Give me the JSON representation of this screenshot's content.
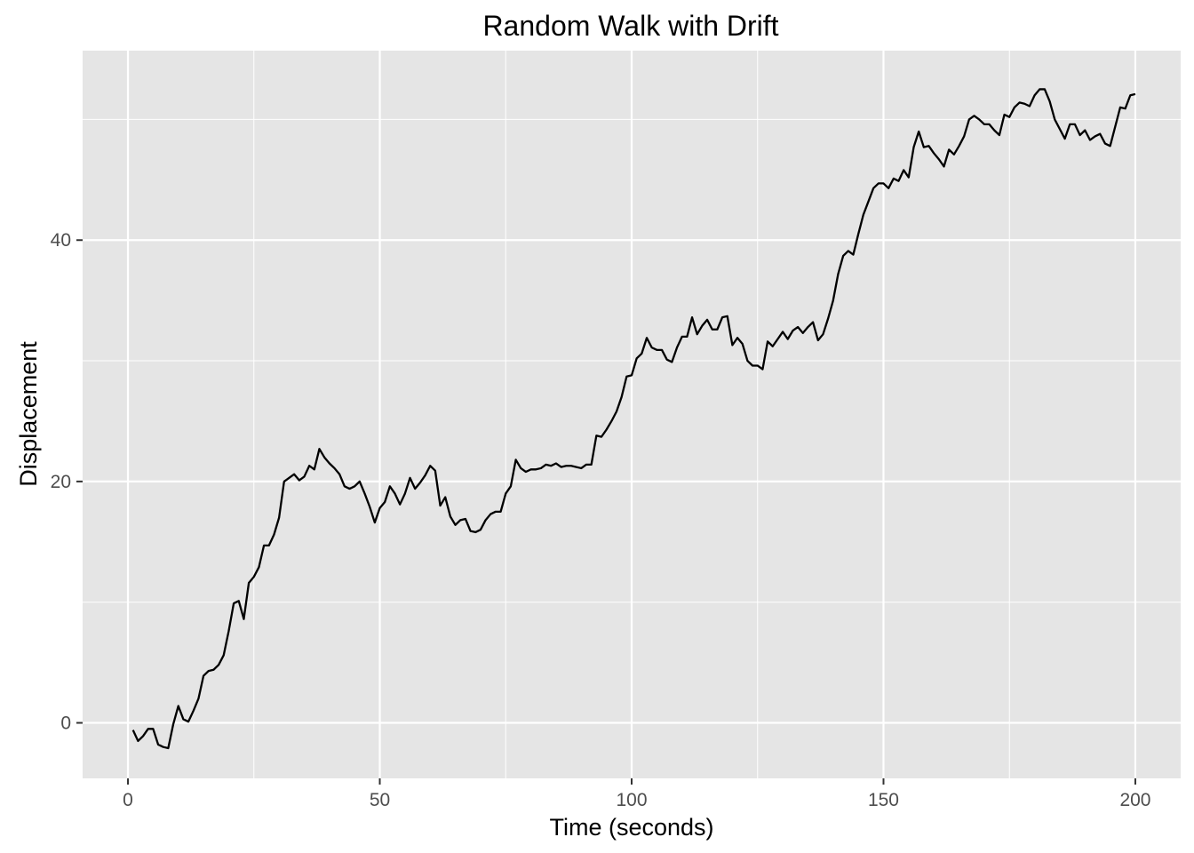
{
  "chart_data": {
    "type": "line",
    "title": "Random Walk with Drift",
    "xlabel": "Time (seconds)",
    "ylabel": "Displacement",
    "xlim": [
      -9,
      209
    ],
    "ylim": [
      -4.6,
      55.7
    ],
    "x_ticks": [
      0,
      50,
      100,
      150,
      200
    ],
    "x_tick_labels": [
      "0",
      "50",
      "100",
      "150",
      "200"
    ],
    "y_ticks": [
      0,
      20,
      40
    ],
    "y_tick_labels": [
      "0",
      "20",
      "40"
    ],
    "x_minor_ticks": [
      25,
      75,
      125,
      175
    ],
    "y_minor_ticks": [
      10,
      30,
      50
    ],
    "grid": true,
    "legend": false,
    "colors": {
      "panel": "#e5e5e5",
      "grid": "#ffffff",
      "line": "#000000",
      "tick_label": "#4d4d4d"
    },
    "series": [
      {
        "x": [
          1,
          2,
          3,
          4,
          5,
          6,
          7,
          8,
          9,
          10,
          11,
          12,
          13,
          14,
          15,
          16,
          17,
          18,
          19,
          20,
          21,
          22,
          23,
          24,
          25,
          26,
          27,
          28,
          29,
          30,
          31,
          32,
          33,
          34,
          35,
          36,
          37,
          38,
          39,
          40,
          41,
          42,
          43,
          44,
          45,
          46,
          47,
          48,
          49,
          50,
          51,
          52,
          53,
          54,
          55,
          56,
          57,
          58,
          59,
          60,
          61,
          62,
          63,
          64,
          65,
          66,
          67,
          68,
          69,
          70,
          71,
          72,
          73,
          74,
          75,
          76,
          77,
          78,
          79,
          80,
          81,
          82,
          83,
          84,
          85,
          86,
          87,
          88,
          89,
          90,
          91,
          92,
          93,
          94,
          95,
          96,
          97,
          98,
          99,
          100,
          101,
          102,
          103,
          104,
          105,
          106,
          107,
          108,
          109,
          110,
          111,
          112,
          113,
          114,
          115,
          116,
          117,
          118,
          119,
          120,
          121,
          122,
          123,
          124,
          125,
          126,
          127,
          128,
          129,
          130,
          131,
          132,
          133,
          134,
          135,
          136,
          137,
          138,
          139,
          140,
          141,
          142,
          143,
          144,
          145,
          146,
          147,
          148,
          149,
          150,
          151,
          152,
          153,
          154,
          155,
          156,
          157,
          158,
          159,
          160,
          161,
          162,
          163,
          164,
          165,
          166,
          167,
          168,
          169,
          170,
          171,
          172,
          173,
          174,
          175,
          176,
          177,
          178,
          179,
          180,
          181,
          182,
          183,
          184,
          185,
          186,
          187,
          188,
          189,
          190,
          191,
          192,
          193,
          194,
          195,
          196,
          197,
          198,
          199,
          200
        ],
        "y": [
          -0.6,
          -1.5,
          -1.1,
          -0.5,
          -0.5,
          -1.8,
          -2.0,
          -2.1,
          -0.1,
          1.4,
          0.3,
          0.1,
          1.0,
          2.0,
          3.9,
          4.3,
          4.4,
          4.8,
          5.6,
          7.6,
          9.9,
          10.1,
          8.6,
          11.6,
          12.1,
          12.9,
          14.7,
          14.7,
          15.6,
          17.0,
          20.0,
          20.3,
          20.6,
          20.1,
          20.4,
          21.3,
          21.0,
          22.7,
          22.0,
          21.5,
          21.1,
          20.6,
          19.6,
          19.4,
          19.6,
          20.0,
          19.0,
          17.9,
          16.6,
          17.8,
          18.3,
          19.6,
          19.0,
          18.1,
          19.0,
          20.3,
          19.4,
          19.9,
          20.5,
          21.3,
          20.9,
          18.0,
          18.7,
          17.1,
          16.4,
          16.8,
          16.9,
          15.9,
          15.8,
          16.0,
          16.8,
          17.3,
          17.5,
          17.5,
          19.0,
          19.6,
          21.8,
          21.1,
          20.8,
          21.0,
          21.0,
          21.1,
          21.4,
          21.3,
          21.5,
          21.2,
          21.3,
          21.3,
          21.2,
          21.1,
          21.4,
          21.4,
          23.8,
          23.7,
          24.3,
          25.0,
          25.8,
          27.0,
          28.7,
          28.8,
          30.2,
          30.6,
          31.9,
          31.1,
          30.9,
          30.9,
          30.1,
          29.9,
          31.1,
          32.0,
          32.0,
          33.6,
          32.2,
          32.9,
          33.4,
          32.6,
          32.6,
          33.6,
          33.7,
          31.3,
          31.9,
          31.4,
          30.0,
          29.6,
          29.6,
          29.3,
          31.6,
          31.2,
          31.8,
          32.4,
          31.8,
          32.5,
          32.8,
          32.3,
          32.8,
          33.2,
          31.7,
          32.2,
          33.5,
          35.0,
          37.2,
          38.7,
          39.1,
          38.8,
          40.5,
          42.1,
          43.2,
          44.3,
          44.7,
          44.7,
          44.3,
          45.1,
          44.9,
          45.8,
          45.2,
          47.7,
          49.0,
          47.7,
          47.8,
          47.2,
          46.7,
          46.1,
          47.5,
          47.1,
          47.8,
          48.6,
          50.0,
          50.3,
          50.0,
          49.6,
          49.6,
          49.1,
          48.7,
          50.4,
          50.2,
          51.0,
          51.4,
          51.3,
          51.1,
          52.0,
          52.5,
          52.5,
          51.5,
          50.0,
          49.2,
          48.4,
          49.6,
          49.6,
          48.7,
          49.1,
          48.3,
          48.6,
          48.8,
          48.0,
          47.8,
          49.4,
          51.0,
          50.9,
          52.0,
          52.1
        ]
      }
    ]
  }
}
